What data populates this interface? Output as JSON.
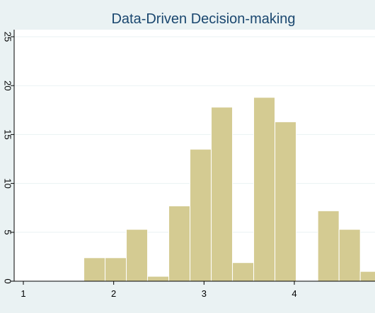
{
  "chart_data": {
    "type": "bar",
    "title": "Data-Driven Decision-making",
    "xlabel": "",
    "ylabel": "",
    "xlim": [
      0.95,
      4.9
    ],
    "ylim": [
      0,
      25
    ],
    "x_ticks": [
      "1",
      "2",
      "3",
      "4"
    ],
    "y_ticks": [
      "0",
      "5",
      "10",
      "15",
      "20",
      "25"
    ],
    "grid": true,
    "legend": "none",
    "bins": [
      {
        "x_start": 1.67,
        "x_end": 1.905,
        "value": 2.4
      },
      {
        "x_start": 1.905,
        "x_end": 2.14,
        "value": 2.4
      },
      {
        "x_start": 2.14,
        "x_end": 2.375,
        "value": 5.3
      },
      {
        "x_start": 2.375,
        "x_end": 2.61,
        "value": 0.5
      },
      {
        "x_start": 2.61,
        "x_end": 2.845,
        "value": 7.7
      },
      {
        "x_start": 2.845,
        "x_end": 3.08,
        "value": 13.5
      },
      {
        "x_start": 3.08,
        "x_end": 3.315,
        "value": 17.8
      },
      {
        "x_start": 3.315,
        "x_end": 3.55,
        "value": 1.9
      },
      {
        "x_start": 3.55,
        "x_end": 3.785,
        "value": 18.8
      },
      {
        "x_start": 3.785,
        "x_end": 4.02,
        "value": 16.3
      },
      {
        "x_start": 4.26,
        "x_end": 4.495,
        "value": 7.2
      },
      {
        "x_start": 4.495,
        "x_end": 4.73,
        "value": 5.3
      },
      {
        "x_start": 4.73,
        "x_end": 4.9,
        "value": 1.0
      }
    ],
    "colors": {
      "bar_fill": "#d4cb92",
      "bar_stroke": "#ffffff",
      "plot_bg": "#ffffff",
      "outer_bg": "#eaf2f3",
      "grid": "#eaf2f3",
      "title": "#1a476f",
      "axis": "#000000"
    }
  }
}
